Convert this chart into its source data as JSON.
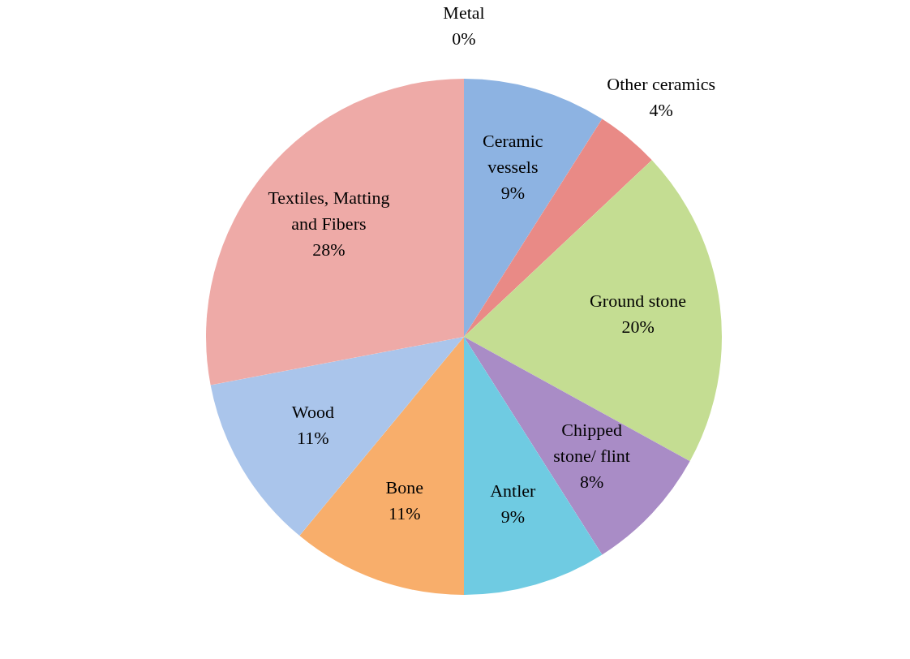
{
  "chart_data": {
    "type": "pie",
    "categories": [
      "Ceramic vessels",
      "Other ceramics",
      "Ground stone",
      "Chipped stone/ flint",
      "Antler",
      "Bone",
      "Wood",
      "Textiles, Matting and Fibers",
      "Metal"
    ],
    "values": [
      9,
      4,
      20,
      8,
      9,
      11,
      11,
      28,
      0
    ],
    "value_labels": [
      "9%",
      "4%",
      "20%",
      "8%",
      "9%",
      "11%",
      "11%",
      "28%",
      "0%"
    ],
    "colors": [
      "#8db3e2",
      "#e98a86",
      "#c4dd92",
      "#a98cc6",
      "#6fcbe2",
      "#f8ae6b",
      "#aac5eb",
      "#eeaaa7",
      "#eef0a0"
    ],
    "legend": false
  }
}
